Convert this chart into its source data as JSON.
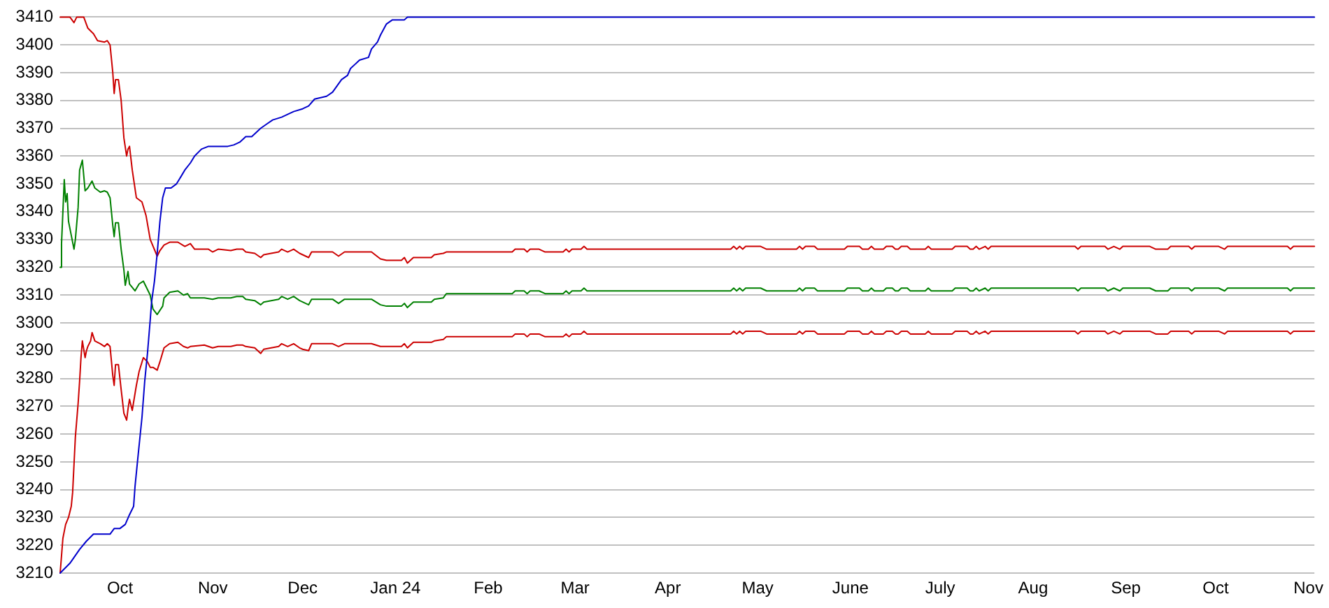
{
  "chart_data": {
    "type": "line",
    "xlim": [
      "2023-09-11",
      "2024-11-03"
    ],
    "xticks": [
      {
        "value": "2023-10-01",
        "label": "Oct"
      },
      {
        "value": "2023-11-01",
        "label": "Nov"
      },
      {
        "value": "2023-12-01",
        "label": "Dec"
      },
      {
        "value": "2024-01-01",
        "label": "Jan 24"
      },
      {
        "value": "2024-02-01",
        "label": "Feb"
      },
      {
        "value": "2024-03-01",
        "label": "Mar"
      },
      {
        "value": "2024-04-01",
        "label": "Apr"
      },
      {
        "value": "2024-05-01",
        "label": "May"
      },
      {
        "value": "2024-06-01",
        "label": "June"
      },
      {
        "value": "2024-07-01",
        "label": "July"
      },
      {
        "value": "2024-08-01",
        "label": "Aug"
      },
      {
        "value": "2024-09-01",
        "label": "Sep"
      },
      {
        "value": "2024-10-01",
        "label": "Oct"
      },
      {
        "value": "2024-11-01",
        "label": "Nov"
      }
    ],
    "ylim": [
      3210,
      3410
    ],
    "yticks": [
      3210,
      3220,
      3230,
      3240,
      3250,
      3260,
      3270,
      3280,
      3290,
      3300,
      3310,
      3320,
      3330,
      3340,
      3350,
      3360,
      3370,
      3380,
      3390,
      3400,
      3410
    ],
    "grid": "y",
    "series": [
      {
        "color": "#0000cc",
        "x": [
          "2023-09-11T00:00",
          "2023-09-14T06:00",
          "2023-09-17T12:00",
          "2023-09-19T19:00",
          "2023-09-22T03:00",
          "2023-09-27T16:00",
          "2023-09-29T01:00",
          "2023-09-30T22:00",
          "2023-10-02T18:00",
          "2023-10-04T04:00",
          "2023-10-05T13:00",
          "2023-10-06T00:00",
          "2023-10-06T22:00",
          "2023-10-08T08:00",
          "2023-10-09T06:00",
          "2023-10-10T04:00",
          "2023-10-11T02:00",
          "2023-10-11T13:00",
          "2023-10-12T12:00",
          "2023-10-13T10:00",
          "2023-10-14T08:00",
          "2023-10-15T06:00",
          "2023-10-16T04:00",
          "2023-10-18T01:00",
          "2023-10-19T21:00",
          "2023-10-21T07:00",
          "2023-10-22T16:00",
          "2023-10-24T12:00",
          "2023-10-25T22:00",
          "2023-10-28T05:00",
          "2023-10-30T13:00",
          "2023-11-06",
          "2023-11-08",
          "2023-11-10",
          "2023-11-12",
          "2023-11-14",
          "2023-11-17",
          "2023-11-19",
          "2023-11-21",
          "2023-11-24",
          "2023-11-26",
          "2023-11-28",
          "2023-12-01",
          "2023-12-03",
          "2023-12-05",
          "2023-12-07",
          "2023-12-09",
          "2023-12-11",
          "2023-12-14",
          "2023-12-16",
          "2023-12-17",
          "2023-12-20",
          "2023-12-23",
          "2023-12-24",
          "2023-12-26",
          "2023-12-27",
          "2023-12-29",
          "2023-12-31",
          "2024-01-04",
          "2024-01-05",
          "2024-11-03"
        ],
        "values": [
          3210,
          3213.5,
          3218.5,
          3221.5,
          3224,
          3224,
          3226,
          3226,
          3227.5,
          3231,
          3234,
          3241,
          3251,
          3266,
          3279,
          3289,
          3301,
          3307.5,
          3315,
          3325,
          3336.5,
          3345,
          3348.5,
          3348.5,
          3350,
          3352.5,
          3355,
          3357.5,
          3360,
          3362.5,
          3363.5,
          3363.5,
          3364,
          3365,
          3367,
          3367,
          3370,
          3371.5,
          3373,
          3374,
          3375,
          3376,
          3377,
          3378,
          3380.5,
          3381,
          3381.5,
          3383,
          3387.5,
          3389,
          3391.5,
          3394.5,
          3395.5,
          3398.5,
          3401,
          3403.5,
          3407.5,
          3409,
          3409,
          3410,
          3410
        ]
      },
      {
        "color": "#cc0000",
        "x": [
          "2023-09-11T00:00",
          "2023-09-14T06:00",
          "2023-09-15T15:00",
          "2023-09-16T13:00",
          "2023-09-18T21:00",
          "2023-09-20T06:00",
          "2023-09-22T03:00",
          "2023-09-23T12:00",
          "2023-09-25T20:00",
          "2023-09-26T18:00",
          "2023-09-27T16:00",
          "2023-09-28T14:00",
          "2023-09-29T01:00",
          "2023-09-29T12:00",
          "2023-09-30T11:00",
          "2023-10-01T09:00",
          "2023-10-02T07:00",
          "2023-10-03T05:00",
          "2023-10-03T16:00",
          "2023-10-04T04:00",
          "2023-10-05T02:00",
          "2023-10-06T11:00",
          "2023-10-08T08:00",
          "2023-10-09T17:00",
          "2023-10-11T02:00",
          "2023-10-13T10:00",
          "2023-10-14T08:00",
          "2023-10-15T17:00",
          "2023-10-17T14:00",
          "2023-10-20T08:00",
          "2023-10-22T16:00",
          "2023-10-24T12:00",
          "2023-10-25T22:00",
          "2023-10-30T13:00",
          "2023-10-31T22:00",
          "2023-11-02T19:00",
          "2023-11-07",
          "2023-11-09",
          "2023-11-11",
          "2023-11-12",
          "2023-11-15",
          "2023-11-17",
          "2023-11-18",
          "2023-11-23",
          "2023-11-24",
          "2023-11-26",
          "2023-11-28",
          "2023-11-30",
          "2023-12-01",
          "2023-12-03",
          "2023-12-04",
          "2023-12-11",
          "2023-12-13",
          "2023-12-15",
          "2023-12-24",
          "2023-12-27",
          "2023-12-29",
          "2024-01-03",
          "2024-01-04",
          "2024-01-05",
          "2024-01-07",
          "2024-01-13",
          "2024-01-14",
          "2024-01-17",
          "2024-01-18",
          "2024-02-09",
          "2024-02-10",
          "2024-02-13",
          "2024-02-14",
          "2024-02-15",
          "2024-02-18",
          "2024-02-20",
          "2024-02-26",
          "2024-02-27",
          "2024-02-28",
          "2024-02-29",
          "2024-03-03",
          "2024-03-04",
          "2024-03-05",
          "2024-04-22",
          "2024-04-23",
          "2024-04-24",
          "2024-04-25",
          "2024-04-26",
          "2024-04-27",
          "2024-05-02",
          "2024-05-04",
          "2024-05-14",
          "2024-05-15",
          "2024-05-16",
          "2024-05-17",
          "2024-05-20",
          "2024-05-21",
          "2024-05-30",
          "2024-05-31",
          "2024-06-04",
          "2024-06-05",
          "2024-06-07",
          "2024-06-08",
          "2024-06-09",
          "2024-06-12",
          "2024-06-13",
          "2024-06-15",
          "2024-06-16",
          "2024-06-17",
          "2024-06-18",
          "2024-06-20",
          "2024-06-21",
          "2024-06-26",
          "2024-06-27",
          "2024-06-28",
          "2024-07-05",
          "2024-07-06",
          "2024-07-10",
          "2024-07-11",
          "2024-07-12",
          "2024-07-13",
          "2024-07-14",
          "2024-07-16",
          "2024-07-17",
          "2024-07-18",
          "2024-08-15",
          "2024-08-16",
          "2024-08-17",
          "2024-08-25",
          "2024-08-26",
          "2024-08-28",
          "2024-08-30",
          "2024-08-31",
          "2024-09-09",
          "2024-09-11",
          "2024-09-15",
          "2024-09-16",
          "2024-09-22",
          "2024-09-23",
          "2024-09-24",
          "2024-10-02",
          "2024-10-04",
          "2024-10-05",
          "2024-10-25",
          "2024-10-26",
          "2024-10-27",
          "2024-11-03"
        ],
        "values": [
          3410,
          3410,
          3408,
          3410,
          3410,
          3406,
          3404,
          3401.5,
          3401,
          3401.5,
          3400,
          3390,
          3382.5,
          3387.5,
          3387.5,
          3380,
          3366.5,
          3360,
          3362.5,
          3363.5,
          3355,
          3345,
          3343.5,
          3338.5,
          3330,
          3324,
          3326,
          3328,
          3329,
          3329,
          3327.5,
          3328.5,
          3326.5,
          3326.5,
          3325.5,
          3326.5,
          3326,
          3326.5,
          3326.5,
          3325.5,
          3325,
          3323.5,
          3324.5,
          3325.5,
          3326.5,
          3325.5,
          3326.5,
          3325,
          3324.5,
          3323.5,
          3325.5,
          3325.5,
          3324,
          3325.5,
          3325.5,
          3323,
          3322.5,
          3322.5,
          3323.5,
          3321.5,
          3323.5,
          3323.5,
          3324.5,
          3325,
          3325.5,
          3325.5,
          3326.5,
          3326.5,
          3325.5,
          3326.5,
          3326.5,
          3325.5,
          3325.5,
          3326.5,
          3325.5,
          3326.5,
          3326.5,
          3327.5,
          3326.5,
          3326.5,
          3327.5,
          3326.5,
          3327.5,
          3326.5,
          3327.5,
          3327.5,
          3326.5,
          3326.5,
          3327.5,
          3326.5,
          3327.5,
          3327.5,
          3326.5,
          3326.5,
          3327.5,
          3327.5,
          3326.5,
          3326.5,
          3327.5,
          3326.5,
          3326.5,
          3327.5,
          3327.5,
          3326.5,
          3326.5,
          3327.5,
          3327.5,
          3326.5,
          3326.5,
          3327.5,
          3326.5,
          3326.5,
          3327.5,
          3327.5,
          3326.5,
          3326.5,
          3327.5,
          3326.5,
          3327.5,
          3326.5,
          3327.5,
          3327.5,
          3326.5,
          3327.5,
          3327.5,
          3326.5,
          3327.5,
          3326.5,
          3327.5,
          3327.5,
          3326.5,
          3326.5,
          3327.5,
          3327.5,
          3326.5,
          3327.5,
          3327.5,
          3326.5,
          3327.5,
          3327.5,
          3326.5,
          3327.5,
          3327.5
        ]
      },
      {
        "color": "#008000",
        "x": [
          "2023-09-11T00:00",
          "2023-09-11T11:00",
          "2023-09-12T09:00",
          "2023-09-12T20:00",
          "2023-09-13T08:00",
          "2023-09-13T19:00",
          "2023-09-14T17:00",
          "2023-09-15T15:00",
          "2023-09-16T02:00",
          "2023-09-17T00:00",
          "2023-09-17T12:00",
          "2023-09-18T10:00",
          "2023-09-19T08:00",
          "2023-09-20T06:00",
          "2023-09-21T16:00",
          "2023-09-22T14:00",
          "2023-09-24T10:00",
          "2023-09-25T20:00",
          "2023-09-26T18:00",
          "2023-09-27T16:00",
          "2023-09-28T14:00",
          "2023-09-29T01:00",
          "2023-09-29T12:00",
          "2023-09-30T11:00",
          "2023-10-01T09:00",
          "2023-10-02T07:00",
          "2023-10-02T18:00",
          "2023-10-03T16:00",
          "2023-10-04T04:00",
          "2023-10-06T00:00",
          "2023-10-07T09:00",
          "2023-10-08T19:00",
          "2023-10-10T04:00",
          "2023-10-11T02:00",
          "2023-10-12T00:00",
          "2023-10-13T10:00",
          "2023-10-15T06:00",
          "2023-10-15T17:00",
          "2023-10-17T14:00",
          "2023-10-20T08:00",
          "2023-10-22T05:00",
          "2023-10-23T14:00",
          "2023-10-24T12:00",
          "2023-10-29T04:00",
          "2023-10-31T22:00",
          "2023-11-02T19:00",
          "2023-11-07",
          "2023-11-09",
          "2023-11-11",
          "2023-11-12",
          "2023-11-15",
          "2023-11-17",
          "2023-11-18",
          "2023-11-23",
          "2023-11-24",
          "2023-11-26",
          "2023-11-28",
          "2023-11-30",
          "2023-12-01",
          "2023-12-03",
          "2023-12-04",
          "2023-12-11",
          "2023-12-13",
          "2023-12-15",
          "2023-12-24",
          "2023-12-27",
          "2023-12-29",
          "2024-01-03",
          "2024-01-04",
          "2024-01-05",
          "2024-01-07",
          "2024-01-13",
          "2024-01-14",
          "2024-01-17",
          "2024-01-18",
          "2024-02-09",
          "2024-02-10",
          "2024-02-13",
          "2024-02-14",
          "2024-02-15",
          "2024-02-18",
          "2024-02-20",
          "2024-02-26",
          "2024-02-27",
          "2024-02-28",
          "2024-02-29",
          "2024-03-03",
          "2024-03-04",
          "2024-03-05",
          "2024-04-22",
          "2024-04-23",
          "2024-04-24",
          "2024-04-25",
          "2024-04-26",
          "2024-04-27",
          "2024-05-02",
          "2024-05-04",
          "2024-05-14",
          "2024-05-15",
          "2024-05-16",
          "2024-05-17",
          "2024-05-20",
          "2024-05-21",
          "2024-05-30",
          "2024-05-31",
          "2024-06-04",
          "2024-06-05",
          "2024-06-07",
          "2024-06-08",
          "2024-06-09",
          "2024-06-12",
          "2024-06-13",
          "2024-06-15",
          "2024-06-16",
          "2024-06-17",
          "2024-06-18",
          "2024-06-20",
          "2024-06-21",
          "2024-06-26",
          "2024-06-27",
          "2024-06-28",
          "2024-07-05",
          "2024-07-06",
          "2024-07-10",
          "2024-07-11",
          "2024-07-12",
          "2024-07-13",
          "2024-07-14",
          "2024-07-16",
          "2024-07-17",
          "2024-07-18",
          "2024-08-15",
          "2024-08-16",
          "2024-08-17",
          "2024-08-25",
          "2024-08-26",
          "2024-08-28",
          "2024-08-30",
          "2024-08-31",
          "2024-09-09",
          "2024-09-11",
          "2024-09-15",
          "2024-09-16",
          "2024-09-22",
          "2024-09-23",
          "2024-09-24",
          "2024-10-02",
          "2024-10-04",
          "2024-10-05",
          "2024-10-25",
          "2024-10-26",
          "2024-10-27",
          "2024-11-03"
        ],
        "values": [
          3320,
          3328.5,
          3351.5,
          3343.5,
          3346.5,
          3336.5,
          3331.5,
          3326.5,
          3330,
          3341.5,
          3355,
          3358.5,
          3347.5,
          3348.5,
          3351,
          3348.5,
          3347,
          3347.5,
          3347,
          3345,
          3335,
          3331,
          3336,
          3336,
          3326.5,
          3319,
          3313.5,
          3318.5,
          3314,
          3311.5,
          3314,
          3315,
          3312,
          3310,
          3305,
          3303,
          3306,
          3309,
          3311,
          3311.5,
          3310,
          3310.5,
          3309,
          3309,
          3308.5,
          3309,
          3309,
          3309.5,
          3309.5,
          3308.5,
          3308,
          3306.5,
          3307.5,
          3308.5,
          3309.5,
          3308.5,
          3309.5,
          3308,
          3307.5,
          3306.5,
          3308.5,
          3308.5,
          3307,
          3308.5,
          3308.5,
          3306.5,
          3306,
          3306,
          3307,
          3305.5,
          3307.5,
          3307.5,
          3308.5,
          3309,
          3310.5,
          3310.5,
          3311.5,
          3311.5,
          3310.5,
          3311.5,
          3311.5,
          3310.5,
          3310.5,
          3311.5,
          3310.5,
          3311.5,
          3311.5,
          3312.5,
          3311.5,
          3311.5,
          3312.5,
          3311.5,
          3312.5,
          3311.5,
          3312.5,
          3312.5,
          3311.5,
          3311.5,
          3312.5,
          3311.5,
          3312.5,
          3312.5,
          3311.5,
          3311.5,
          3312.5,
          3312.5,
          3311.5,
          3311.5,
          3312.5,
          3311.5,
          3311.5,
          3312.5,
          3312.5,
          3311.5,
          3311.5,
          3312.5,
          3312.5,
          3311.5,
          3311.5,
          3312.5,
          3311.5,
          3311.5,
          3312.5,
          3312.5,
          3311.5,
          3311.5,
          3312.5,
          3311.5,
          3312.5,
          3311.5,
          3312.5,
          3312.5,
          3311.5,
          3312.5,
          3312.5,
          3311.5,
          3312.5,
          3311.5,
          3312.5,
          3312.5,
          3311.5,
          3311.5,
          3312.5,
          3312.5,
          3311.5,
          3312.5,
          3312.5,
          3311.5,
          3312.5,
          3312.5,
          3311.5,
          3312.5,
          3312.5
        ]
      },
      {
        "color": "#cc0000",
        "x": [
          "2023-09-11T00:00",
          "2023-09-11T22:00",
          "2023-09-12T20:00",
          "2023-09-13T19:00",
          "2023-09-14T17:00",
          "2023-09-15T04:00",
          "2023-09-15T15:00",
          "2023-09-16T02:00",
          "2023-09-17T00:00",
          "2023-09-17T12:00",
          "2023-09-17T23:00",
          "2023-09-18T10:00",
          "2023-09-19T08:00",
          "2023-09-19T19:00",
          "2023-09-20T06:00",
          "2023-09-21T04:00",
          "2023-09-21T16:00",
          "2023-09-22T14:00",
          "2023-09-24T10:00",
          "2023-09-25T20:00",
          "2023-09-26T18:00",
          "2023-09-27T16:00",
          "2023-09-28T14:00",
          "2023-09-29T01:00",
          "2023-09-29T12:00",
          "2023-09-30T11:00",
          "2023-10-01T09:00",
          "2023-10-02T07:00",
          "2023-10-03T05:00",
          "2023-10-03T16:00",
          "2023-10-04T04:00",
          "2023-10-05T02:00",
          "2023-10-06T11:00",
          "2023-10-07T09:00",
          "2023-10-08T19:00",
          "2023-10-10T04:00",
          "2023-10-11T02:00",
          "2023-10-12T00:00",
          "2023-10-13T10:00",
          "2023-10-14T08:00",
          "2023-10-15T17:00",
          "2023-10-17T14:00",
          "2023-10-20T08:00",
          "2023-10-22T05:00",
          "2023-10-23T14:00",
          "2023-10-24T12:00",
          "2023-10-29T04:00",
          "2023-10-31T22:00",
          "2023-11-02T19:00",
          "2023-11-07",
          "2023-11-09",
          "2023-11-11",
          "2023-11-12",
          "2023-11-15",
          "2023-11-17",
          "2023-11-18",
          "2023-11-23",
          "2023-11-24",
          "2023-11-26",
          "2023-11-28",
          "2023-11-30",
          "2023-12-01",
          "2023-12-03",
          "2023-12-04",
          "2023-12-11",
          "2023-12-13",
          "2023-12-15",
          "2023-12-24",
          "2023-12-27",
          "2023-12-29",
          "2024-01-03",
          "2024-01-04",
          "2024-01-05",
          "2024-01-07",
          "2024-01-13",
          "2024-01-14",
          "2024-01-17",
          "2024-01-18",
          "2024-02-09",
          "2024-02-10",
          "2024-02-13",
          "2024-02-14",
          "2024-02-15",
          "2024-02-18",
          "2024-02-20",
          "2024-02-26",
          "2024-02-27",
          "2024-02-28",
          "2024-02-29",
          "2024-03-03",
          "2024-03-04",
          "2024-03-05",
          "2024-04-22",
          "2024-04-23",
          "2024-04-24",
          "2024-04-25",
          "2024-04-26",
          "2024-04-27",
          "2024-05-02",
          "2024-05-04",
          "2024-05-14",
          "2024-05-15",
          "2024-05-16",
          "2024-05-17",
          "2024-05-20",
          "2024-05-21",
          "2024-05-30",
          "2024-05-31",
          "2024-06-04",
          "2024-06-05",
          "2024-06-07",
          "2024-06-08",
          "2024-06-09",
          "2024-06-12",
          "2024-06-13",
          "2024-06-15",
          "2024-06-16",
          "2024-06-17",
          "2024-06-18",
          "2024-06-20",
          "2024-06-21",
          "2024-06-26",
          "2024-06-27",
          "2024-06-28",
          "2024-07-05",
          "2024-07-06",
          "2024-07-10",
          "2024-07-11",
          "2024-07-12",
          "2024-07-13",
          "2024-07-14",
          "2024-07-16",
          "2024-07-17",
          "2024-07-18",
          "2024-08-15",
          "2024-08-16",
          "2024-08-17",
          "2024-08-25",
          "2024-08-26",
          "2024-08-28",
          "2024-08-30",
          "2024-08-31",
          "2024-09-09",
          "2024-09-11",
          "2024-09-15",
          "2024-09-16",
          "2024-09-22",
          "2024-09-23",
          "2024-09-24",
          "2024-10-02",
          "2024-10-04",
          "2024-10-05",
          "2024-10-25",
          "2024-10-26",
          "2024-10-27",
          "2024-11-03"
        ],
        "values": [
          3210,
          3222.5,
          3227.5,
          3230,
          3234,
          3239,
          3249,
          3259,
          3271,
          3279,
          3287.5,
          3293.5,
          3287.5,
          3290,
          3291.5,
          3293.5,
          3296.5,
          3293.5,
          3292.5,
          3291.5,
          3292.5,
          3291.5,
          3281,
          3277.5,
          3285,
          3285,
          3276,
          3267.5,
          3265,
          3269,
          3272.5,
          3268.5,
          3277.5,
          3282.5,
          3287.5,
          3286,
          3284,
          3284,
          3283,
          3286,
          3291,
          3292.5,
          3293,
          3291.5,
          3291,
          3291.5,
          3292,
          3291,
          3291.5,
          3291.5,
          3292,
          3292,
          3291.5,
          3291,
          3289,
          3290.5,
          3291.5,
          3292.5,
          3291.5,
          3292.5,
          3291,
          3290.5,
          3290,
          3292.5,
          3292.5,
          3291.5,
          3292.5,
          3292.5,
          3291.5,
          3291.5,
          3291.5,
          3292.5,
          3291,
          3293,
          3293,
          3293.5,
          3294,
          3295,
          3295,
          3296,
          3296,
          3295,
          3296,
          3296,
          3295,
          3295,
          3296,
          3295,
          3296,
          3296,
          3297,
          3296,
          3296,
          3297,
          3296,
          3297,
          3296,
          3297,
          3297,
          3296,
          3296,
          3297,
          3296,
          3297,
          3297,
          3296,
          3296,
          3297,
          3297,
          3296,
          3296,
          3297,
          3296,
          3296,
          3297,
          3297,
          3296,
          3296,
          3297,
          3297,
          3296,
          3296,
          3297,
          3296,
          3296,
          3297,
          3297,
          3296,
          3296,
          3297,
          3296,
          3297,
          3296,
          3297,
          3297,
          3296,
          3297,
          3297,
          3296,
          3297,
          3296,
          3297,
          3297,
          3296,
          3296,
          3297,
          3297,
          3296,
          3297,
          3297,
          3296,
          3297,
          3297,
          3296,
          3297,
          3297
        ]
      }
    ]
  }
}
